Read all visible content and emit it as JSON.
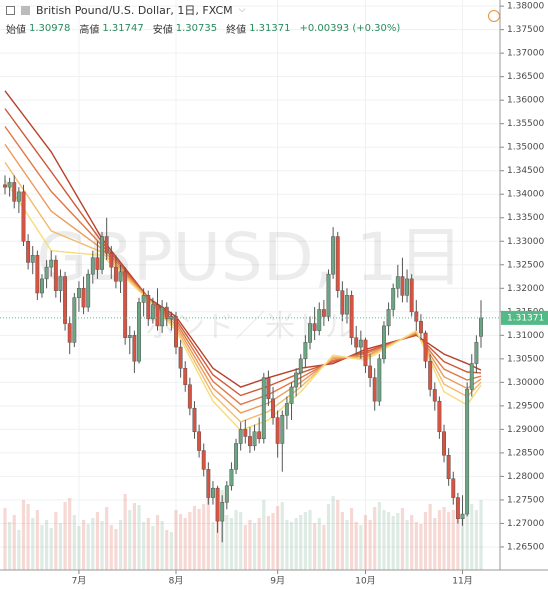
{
  "chart_data": {
    "type": "candlestick",
    "title": "British Pound/U.S. Dollar, 1日, FXCM",
    "legend_items": [
      {
        "label": "始値",
        "value": "1.30978"
      },
      {
        "label": "高値",
        "value": "1.31747"
      },
      {
        "label": "安値",
        "value": "1.30735"
      },
      {
        "label": "終値",
        "value": "1.31371"
      }
    ],
    "change": "+0.00393 (+0.30%)",
    "watermark": "GBPUSD, 1日",
    "watermark_sub": "ポンド／米ドル",
    "up_color": "#6ba583",
    "down_color": "#d75442",
    "grid": true,
    "ylim": [
      1.2601,
      1.3813
    ],
    "yticks": [
      {
        "value": 1.265,
        "label": "1.26500"
      },
      {
        "value": 1.27,
        "label": "1.27000"
      },
      {
        "value": 1.275,
        "label": "1.27500"
      },
      {
        "value": 1.28,
        "label": "1.28000"
      },
      {
        "value": 1.285,
        "label": "1.28500"
      },
      {
        "value": 1.29,
        "label": "1.29000"
      },
      {
        "value": 1.295,
        "label": "1.29500"
      },
      {
        "value": 1.3,
        "label": "1.30000"
      },
      {
        "value": 1.305,
        "label": "1.30500"
      },
      {
        "value": 1.31,
        "label": "1.31000"
      },
      {
        "value": 1.315,
        "label": "1.31500"
      },
      {
        "value": 1.32,
        "label": "1.32000"
      },
      {
        "value": 1.325,
        "label": "1.32500"
      },
      {
        "value": 1.33,
        "label": "1.33000"
      },
      {
        "value": 1.335,
        "label": "1.33500"
      },
      {
        "value": 1.34,
        "label": "1.34000"
      },
      {
        "value": 1.345,
        "label": "1.34500"
      },
      {
        "value": 1.35,
        "label": "1.35000"
      },
      {
        "value": 1.355,
        "label": "1.35500"
      },
      {
        "value": 1.36,
        "label": "1.36000"
      },
      {
        "value": 1.365,
        "label": "1.36500"
      },
      {
        "value": 1.37,
        "label": "1.37000"
      },
      {
        "value": 1.375,
        "label": "1.37500"
      },
      {
        "value": 1.38,
        "label": "1.38000"
      }
    ],
    "last_price": {
      "value": 1.31371,
      "label": "1.31371",
      "color": "#53b987"
    },
    "categories": [
      null,
      null,
      null,
      null,
      null,
      null,
      null,
      null,
      null,
      null,
      null,
      null,
      null,
      null,
      null,
      null,
      "7月",
      null,
      null,
      null,
      null,
      null,
      null,
      null,
      null,
      null,
      null,
      null,
      null,
      null,
      null,
      null,
      null,
      null,
      null,
      null,
      null,
      "8月",
      null,
      null,
      null,
      null,
      null,
      null,
      null,
      null,
      null,
      null,
      null,
      null,
      null,
      null,
      null,
      null,
      null,
      null,
      null,
      null,
      null,
      "9月",
      null,
      null,
      null,
      null,
      null,
      null,
      null,
      null,
      null,
      null,
      null,
      null,
      null,
      null,
      null,
      null,
      null,
      null,
      "10月",
      null,
      null,
      null,
      null,
      null,
      null,
      null,
      null,
      null,
      null,
      null,
      null,
      null,
      null,
      null,
      null,
      null,
      null,
      null,
      null,
      "11月",
      null,
      null,
      null,
      null
    ],
    "ohlc": [
      [
        1.342,
        1.344,
        1.34,
        1.3415
      ],
      [
        1.3415,
        1.3435,
        1.3395,
        1.3425
      ],
      [
        1.3425,
        1.344,
        1.337,
        1.3385
      ],
      [
        1.3385,
        1.3415,
        1.336,
        1.3405
      ],
      [
        1.3405,
        1.342,
        1.329,
        1.33
      ],
      [
        1.33,
        1.3315,
        1.324,
        1.3255
      ],
      [
        1.3255,
        1.329,
        1.323,
        1.327
      ],
      [
        1.327,
        1.328,
        1.3175,
        1.319
      ],
      [
        1.319,
        1.323,
        1.318,
        1.322
      ],
      [
        1.322,
        1.326,
        1.32,
        1.3245
      ],
      [
        1.3245,
        1.328,
        1.3225,
        1.326
      ],
      [
        1.326,
        1.327,
        1.318,
        1.3195
      ],
      [
        1.3195,
        1.324,
        1.317,
        1.3225
      ],
      [
        1.3225,
        1.3235,
        1.311,
        1.3125
      ],
      [
        1.3125,
        1.314,
        1.306,
        1.3085
      ],
      [
        1.3085,
        1.319,
        1.3075,
        1.318
      ],
      [
        1.318,
        1.3215,
        1.315,
        1.32
      ],
      [
        1.32,
        1.3225,
        1.3145,
        1.316
      ],
      [
        1.316,
        1.324,
        1.315,
        1.323
      ],
      [
        1.323,
        1.328,
        1.321,
        1.3265
      ],
      [
        1.3265,
        1.33,
        1.322,
        1.324
      ],
      [
        1.324,
        1.332,
        1.323,
        1.331
      ],
      [
        1.331,
        1.335,
        1.326,
        1.3275
      ],
      [
        1.3275,
        1.329,
        1.322,
        1.3245
      ],
      [
        1.3245,
        1.327,
        1.32,
        1.3215
      ],
      [
        1.3215,
        1.325,
        1.319,
        1.3235
      ],
      [
        1.3235,
        1.3245,
        1.308,
        1.3095
      ],
      [
        1.3095,
        1.312,
        1.306,
        1.31
      ],
      [
        1.31,
        1.311,
        1.302,
        1.3045
      ],
      [
        1.3045,
        1.318,
        1.304,
        1.317
      ],
      [
        1.317,
        1.32,
        1.314,
        1.3185
      ],
      [
        1.3185,
        1.3195,
        1.312,
        1.3135
      ],
      [
        1.3135,
        1.318,
        1.3125,
        1.3165
      ],
      [
        1.3165,
        1.32,
        1.311,
        1.312
      ],
      [
        1.312,
        1.3175,
        1.3105,
        1.316
      ],
      [
        1.316,
        1.317,
        1.312,
        1.3135
      ],
      [
        1.3135,
        1.315,
        1.311,
        1.314
      ],
      [
        1.314,
        1.315,
        1.306,
        1.3075
      ],
      [
        1.3075,
        1.309,
        1.301,
        1.303
      ],
      [
        1.303,
        1.3045,
        1.298,
        1.2995
      ],
      [
        1.2995,
        1.301,
        1.293,
        1.2945
      ],
      [
        1.2945,
        1.296,
        1.288,
        1.2895
      ],
      [
        1.2895,
        1.291,
        1.284,
        1.2855
      ],
      [
        1.2855,
        1.287,
        1.28,
        1.2815
      ],
      [
        1.2815,
        1.283,
        1.274,
        1.2755
      ],
      [
        1.2755,
        1.279,
        1.274,
        1.2775
      ],
      [
        1.2775,
        1.278,
        1.268,
        1.2705
      ],
      [
        1.2705,
        1.276,
        1.266,
        1.2745
      ],
      [
        1.2745,
        1.279,
        1.273,
        1.278
      ],
      [
        1.278,
        1.283,
        1.277,
        1.2815
      ],
      [
        1.2815,
        1.288,
        1.2805,
        1.287
      ],
      [
        1.287,
        1.2915,
        1.2855,
        1.29
      ],
      [
        1.29,
        1.292,
        1.287,
        1.2885
      ],
      [
        1.2885,
        1.2905,
        1.285,
        1.2865
      ],
      [
        1.2865,
        1.291,
        1.2855,
        1.2895
      ],
      [
        1.2895,
        1.2925,
        1.287,
        1.288
      ],
      [
        1.288,
        1.302,
        1.287,
        1.301
      ],
      [
        1.301,
        1.3025,
        1.295,
        1.2965
      ],
      [
        1.2965,
        1.299,
        1.291,
        1.2925
      ],
      [
        1.2925,
        1.294,
        1.284,
        1.287
      ],
      [
        1.287,
        1.294,
        1.281,
        1.293
      ],
      [
        1.293,
        1.297,
        1.29,
        1.2955
      ],
      [
        1.2955,
        1.3,
        1.292,
        1.299
      ],
      [
        1.299,
        1.303,
        1.297,
        1.302
      ],
      [
        1.302,
        1.306,
        1.299,
        1.305
      ],
      [
        1.305,
        1.31,
        1.303,
        1.3085
      ],
      [
        1.3085,
        1.314,
        1.307,
        1.3125
      ],
      [
        1.3125,
        1.316,
        1.309,
        1.311
      ],
      [
        1.311,
        1.317,
        1.31,
        1.3155
      ],
      [
        1.3155,
        1.3175,
        1.312,
        1.314
      ],
      [
        1.314,
        1.324,
        1.313,
        1.323
      ],
      [
        1.323,
        1.333,
        1.322,
        1.331
      ],
      [
        1.331,
        1.332,
        1.318,
        1.3195
      ],
      [
        1.3195,
        1.3215,
        1.313,
        1.3145
      ],
      [
        1.3145,
        1.32,
        1.3125,
        1.3185
      ],
      [
        1.3185,
        1.3195,
        1.308,
        1.3095
      ],
      [
        1.3095,
        1.312,
        1.306,
        1.3075
      ],
      [
        1.3075,
        1.311,
        1.305,
        1.309
      ],
      [
        1.309,
        1.3095,
        1.302,
        1.3035
      ],
      [
        1.3035,
        1.306,
        1.299,
        1.301
      ],
      [
        1.301,
        1.303,
        1.294,
        1.296
      ],
      [
        1.296,
        1.306,
        1.295,
        1.305
      ],
      [
        1.305,
        1.313,
        1.304,
        1.312
      ],
      [
        1.312,
        1.317,
        1.31,
        1.3155
      ],
      [
        1.3155,
        1.321,
        1.314,
        1.32
      ],
      [
        1.32,
        1.325,
        1.318,
        1.3225
      ],
      [
        1.3225,
        1.3265,
        1.317,
        1.3185
      ],
      [
        1.3185,
        1.324,
        1.317,
        1.322
      ],
      [
        1.322,
        1.323,
        1.314,
        1.315
      ],
      [
        1.315,
        1.3175,
        1.311,
        1.313
      ],
      [
        1.313,
        1.3145,
        1.309,
        1.3105
      ],
      [
        1.3105,
        1.311,
        1.303,
        1.3045
      ],
      [
        1.3045,
        1.306,
        1.297,
        1.2985
      ],
      [
        1.2985,
        1.3,
        1.294,
        1.296
      ],
      [
        1.296,
        1.297,
        1.288,
        1.2895
      ],
      [
        1.2895,
        1.291,
        1.283,
        1.2845
      ],
      [
        1.2845,
        1.286,
        1.278,
        1.2795
      ],
      [
        1.2795,
        1.281,
        1.274,
        1.2755
      ],
      [
        1.2755,
        1.2765,
        1.27,
        1.271
      ],
      [
        1.271,
        1.276,
        1.2695,
        1.272
      ],
      [
        1.272,
        1.3,
        1.2715,
        1.2985
      ],
      [
        1.2985,
        1.306,
        1.297,
        1.304
      ],
      [
        1.304,
        1.31,
        1.302,
        1.3085
      ],
      [
        1.30978,
        1.31747,
        1.30735,
        1.31371
      ]
    ],
    "volume_ylim": [
      0,
      100
    ],
    "volume": [
      62,
      48,
      55,
      40,
      70,
      66,
      52,
      60,
      45,
      50,
      42,
      58,
      47,
      68,
      72,
      55,
      44,
      50,
      46,
      52,
      58,
      49,
      63,
      45,
      41,
      50,
      76,
      60,
      67,
      65,
      48,
      52,
      44,
      55,
      49,
      40,
      38,
      60,
      56,
      52,
      58,
      64,
      61,
      66,
      72,
      48,
      75,
      80,
      55,
      52,
      60,
      58,
      45,
      50,
      47,
      52,
      70,
      54,
      57,
      64,
      68,
      50,
      48,
      52,
      55,
      58,
      60,
      47,
      52,
      45,
      66,
      74,
      70,
      58,
      50,
      62,
      48,
      45,
      55,
      50,
      63,
      68,
      60,
      58,
      54,
      57,
      62,
      50,
      55,
      48,
      46,
      58,
      66,
      52,
      60,
      63,
      58,
      60,
      68,
      55,
      82,
      66,
      60,
      70
    ],
    "ribbon_x": [
      0,
      10,
      21,
      31,
      37,
      45,
      51,
      57,
      64,
      71,
      78,
      89,
      95,
      100,
      103
    ],
    "ribbon": [
      {
        "color": "#b8412c",
        "values": [
          1.362,
          1.349,
          1.3305,
          1.318,
          1.314,
          1.303,
          1.299,
          1.301,
          1.303,
          1.304,
          1.307,
          1.31,
          1.306,
          1.304,
          1.3026
        ]
      },
      {
        "color": "#cf5a38",
        "values": [
          1.3582,
          1.3448,
          1.3298,
          1.3179,
          1.3134,
          1.3016,
          1.2972,
          1.2992,
          1.302,
          1.3044,
          1.3065,
          1.3102,
          1.3044,
          1.3022,
          1.302
        ]
      },
      {
        "color": "#e07848",
        "values": [
          1.3544,
          1.3406,
          1.3291,
          1.3178,
          1.3128,
          1.3002,
          1.2953,
          1.2974,
          1.301,
          1.3047,
          1.3061,
          1.3104,
          1.3028,
          1.3005,
          1.3013
        ]
      },
      {
        "color": "#eb9a5c",
        "values": [
          1.3506,
          1.3364,
          1.3284,
          1.3177,
          1.3122,
          1.2988,
          1.2935,
          1.2956,
          1.3,
          1.3051,
          1.3056,
          1.3106,
          1.3012,
          1.2987,
          1.3007
        ]
      },
      {
        "color": "#f2bb6c",
        "values": [
          1.3468,
          1.3322,
          1.3277,
          1.3176,
          1.3116,
          1.2974,
          1.2916,
          1.2938,
          1.299,
          1.3054,
          1.3052,
          1.3108,
          1.2996,
          1.297,
          1.3
        ]
      },
      {
        "color": "#f6dc7a",
        "values": [
          1.343,
          1.328,
          1.327,
          1.3175,
          1.311,
          1.296,
          1.2898,
          1.292,
          1.298,
          1.3058,
          1.3047,
          1.311,
          1.298,
          1.2952,
          1.2994
        ]
      }
    ]
  }
}
